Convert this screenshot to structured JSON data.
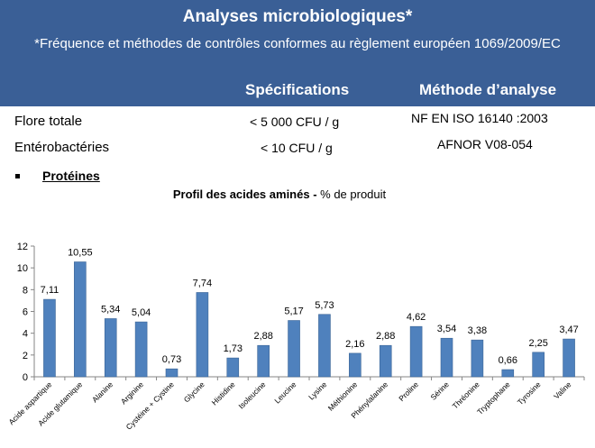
{
  "banner": {
    "title": "Analyses microbiologiques*",
    "subtitle": "*Fréquence et méthodes de contrôles conformes au règlement européen 1069/2009/EC",
    "col_spec": "Spécifications",
    "col_method": "Méthode d’analyse"
  },
  "rows": [
    {
      "label": "Flore totale",
      "spec": "< 5 000 CFU / g",
      "method": "NF EN ISO 16140 :2003"
    },
    {
      "label": "Entérobactéries",
      "spec": "< 10 CFU / g",
      "method": "AFNOR V08-054"
    }
  ],
  "section": {
    "title": "Protéines"
  },
  "chart_title": {
    "bold": "Profil des acides aminés -",
    "rest": " % de produit"
  },
  "colors": {
    "banner": "#3a5f96",
    "bar": "#4f81bd",
    "bar_border": "#3a6496"
  },
  "chart_data": {
    "type": "bar",
    "title": "Profil des acides aminés - % de produit",
    "xlabel": "",
    "ylabel": "",
    "ylim": [
      0,
      12
    ],
    "yticks": [
      0,
      2,
      4,
      6,
      8,
      10,
      12
    ],
    "grid": false,
    "categories": [
      "Acide aspartique",
      "Acide glutamique",
      "Alanine",
      "Arginine",
      "Cystéine + Cystine",
      "Glycine",
      "Histidine",
      "Isoleucine",
      "Leucine",
      "Lysine",
      "Méthionine",
      "Phénylalanine",
      "Proline",
      "Sérine",
      "Thréonine",
      "Tryptophane",
      "Tyrosine",
      "Valine"
    ],
    "values": [
      7.11,
      10.55,
      5.34,
      5.04,
      0.73,
      7.74,
      1.73,
      2.88,
      5.17,
      5.73,
      2.16,
      2.88,
      4.62,
      3.54,
      3.38,
      0.66,
      2.25,
      3.47
    ],
    "value_labels": [
      "7,11",
      "10,55",
      "5,34",
      "5,04",
      "0,73",
      "7,74",
      "1,73",
      "2,88",
      "5,17",
      "5,73",
      "2,16",
      "2,88",
      "4,62",
      "3,54",
      "3,38",
      "0,66",
      "2,25",
      "3,47"
    ],
    "ytick_labels": [
      "0",
      "2",
      "4",
      "6",
      "8",
      "10",
      "12"
    ]
  }
}
